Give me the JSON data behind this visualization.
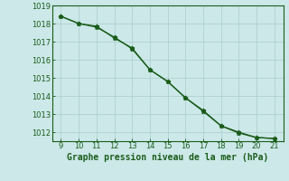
{
  "x": [
    9,
    10,
    11,
    12,
    13,
    14,
    15,
    16,
    17,
    18,
    19,
    20,
    21
  ],
  "line1": [
    1018.4,
    1018.0,
    1017.8,
    1017.25,
    1016.6,
    1015.45,
    1014.8,
    1013.9,
    1013.2,
    1012.35,
    1012.0,
    1011.7,
    1011.65
  ],
  "line2": [
    1018.4,
    1018.0,
    1017.85,
    1017.2,
    1016.65,
    1015.45,
    1014.8,
    1013.9,
    1013.15,
    1012.35,
    1011.95,
    1011.7,
    1011.65
  ],
  "ylim_min": 1011.5,
  "ylim_max": 1019.0,
  "xlim_min": 8.5,
  "xlim_max": 21.5,
  "yticks": [
    1012,
    1013,
    1014,
    1015,
    1016,
    1017,
    1018,
    1019
  ],
  "xticks": [
    9,
    10,
    11,
    12,
    13,
    14,
    15,
    16,
    17,
    18,
    19,
    20,
    21
  ],
  "line_color": "#1a5c1a",
  "marker": "*",
  "bg_color": "#cce8e8",
  "grid_color": "#aacccc",
  "xlabel": "Graphe pression niveau de la mer (hPa)",
  "xlabel_color": "#1a5c1a",
  "tick_color": "#1a5c1a",
  "axis_color": "#1a5c1a",
  "label_fontsize": 6,
  "xlabel_fontsize": 7,
  "marker_size": 3.5,
  "line_width": 0.9
}
